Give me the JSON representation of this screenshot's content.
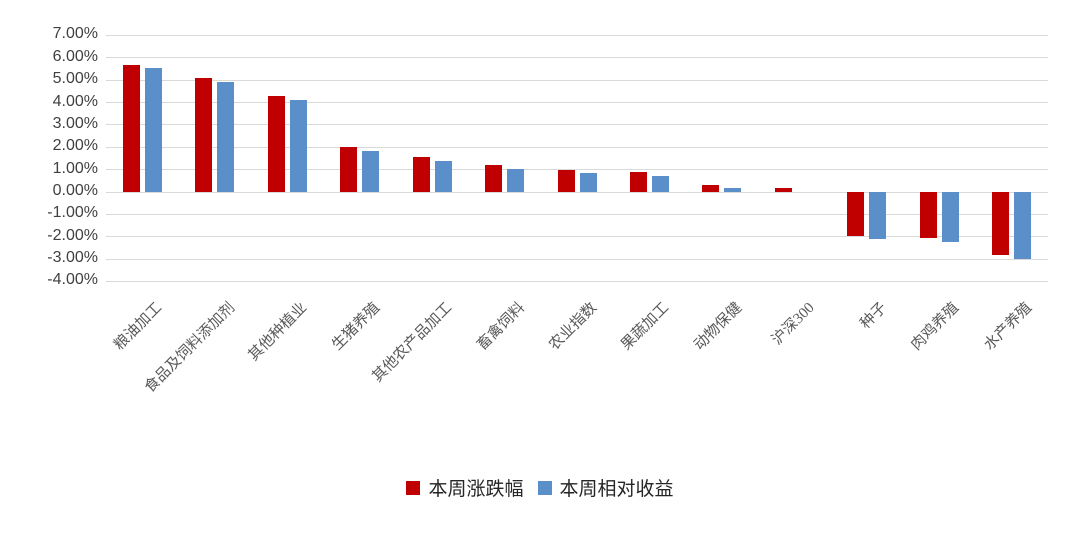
{
  "chart_data": {
    "type": "bar",
    "title": "",
    "xlabel": "",
    "ylabel": "",
    "categories": [
      "粮油加工",
      "食品及饲料添加剂",
      "其他种植业",
      "生猪养殖",
      "其他农产品加工",
      "畜禽饲料",
      "农业指数",
      "果蔬加工",
      "动物保健",
      "沪深300",
      "种子",
      "肉鸡养殖",
      "水产养殖"
    ],
    "series": [
      {
        "name": "本周涨跌幅",
        "color": "#C00000",
        "values": [
          5.7,
          5.08,
          4.3,
          2.0,
          1.55,
          1.2,
          1.0,
          0.9,
          0.33,
          0.17,
          -1.95,
          -2.07,
          -2.83
        ]
      },
      {
        "name": "本周相对收益",
        "color": "#5B8FC9",
        "values": [
          5.53,
          4.91,
          4.13,
          1.83,
          1.38,
          1.03,
          0.83,
          0.73,
          0.16,
          0.0,
          -2.12,
          -2.24,
          -3.0
        ]
      }
    ],
    "y_ticks": [
      "7.00%",
      "6.00%",
      "5.00%",
      "4.00%",
      "3.00%",
      "2.00%",
      "1.00%",
      "0.00%",
      "-1.00%",
      "-2.00%",
      "-3.00%",
      "-4.00%"
    ],
    "ylim": [
      -4,
      7
    ],
    "grid": true,
    "legend_position": "bottom",
    "colors": {
      "gridline": "#D9D9D9",
      "y_tick_label": "#404040",
      "category_label": "#595959",
      "background": "#FFFFFF"
    }
  }
}
